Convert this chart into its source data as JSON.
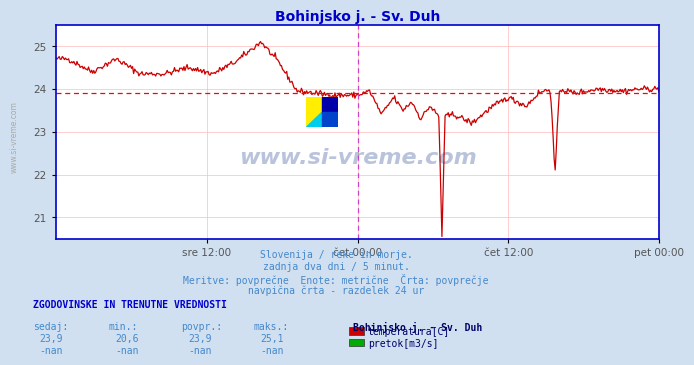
{
  "title": "Bohinjsko j. - Sv. Duh",
  "title_color": "#0000cc",
  "bg_color": "#d0e0f0",
  "plot_bg_color": "#ffffff",
  "grid_color": "#ffbbbb",
  "axis_color": "#0000cc",
  "line_color": "#cc0000",
  "avg_line_color": "#ff0000",
  "vline_color": "#cc44cc",
  "ylim": [
    20.5,
    25.5
  ],
  "yticks": [
    21,
    22,
    23,
    24,
    25
  ],
  "n_points": 576,
  "avg_value": 23.9,
  "subtitle_lines": [
    "Slovenija / reke in morje.",
    "zadnja dva dni / 5 minut.",
    "Meritve: povprečne  Enote: metrične  Črta: povprečje",
    "navpična črta - razdelek 24 ur"
  ],
  "subtitle_color": "#4488cc",
  "bottom_header": "ZGODOVINSKE IN TRENUTNE VREDNOSTI",
  "bottom_header_color": "#0000cc",
  "col_headers": [
    "sedaj:",
    "min.:",
    "povpr.:",
    "maks.:"
  ],
  "col_values_temp": [
    "23,9",
    "20,6",
    "23,9",
    "25,1"
  ],
  "col_values_pretok": [
    "-nan",
    "-nan",
    "-nan",
    "-nan"
  ],
  "col_header_color": "#4488cc",
  "col_value_color": "#4488cc",
  "station_name": "Bohinjsko j. - Sv. Duh",
  "legend_items": [
    {
      "label": "temperatura[C]",
      "color": "#cc0000"
    },
    {
      "label": "pretok[m3/s]",
      "color": "#00aa00"
    }
  ],
  "xtick_labels": [
    "sre 12:00",
    "čet 00:00",
    "čet 12:00",
    "pet 00:00"
  ],
  "xtick_positions": [
    0.25,
    0.5,
    0.75,
    1.0
  ],
  "vline_positions": [
    0.5,
    1.0
  ],
  "watermark": "www.si-vreme.com",
  "watermark_color": "#1a3a8a",
  "left_label": "www.si-vreme.com"
}
